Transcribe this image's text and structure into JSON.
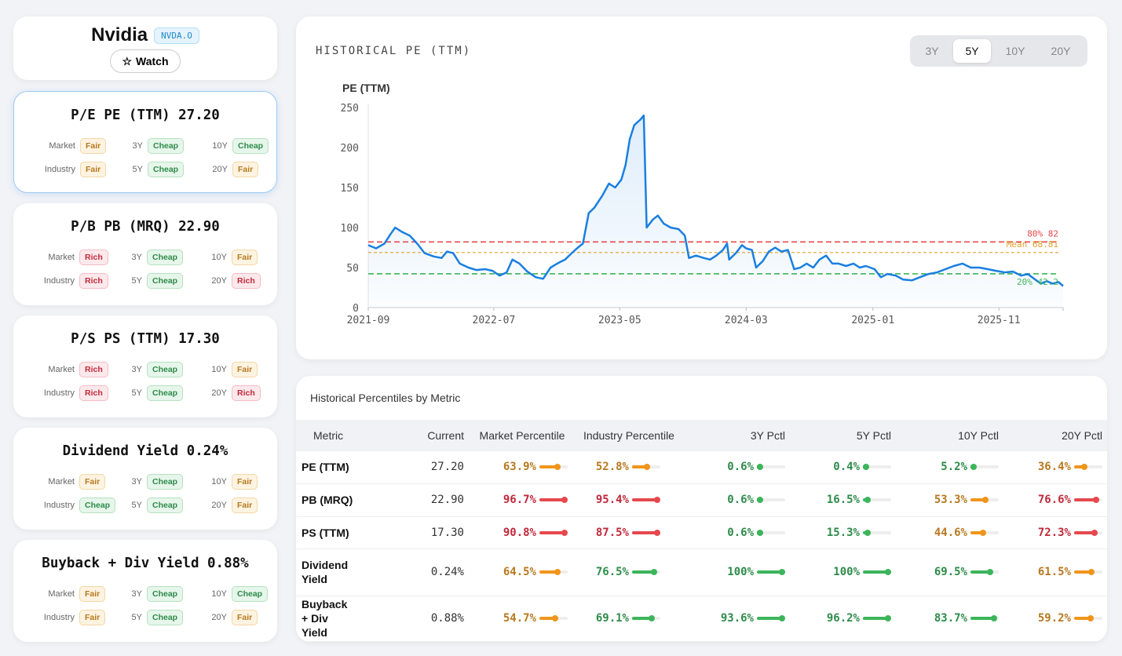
{
  "header": {
    "company": "Nvidia",
    "ticker": "NVDA.O",
    "watch_icon": "☆",
    "watch_label": "Watch"
  },
  "cards": [
    {
      "title": "P/E PE (TTM) 27.20",
      "selected": true,
      "ratings": [
        [
          "Market",
          "Fair"
        ],
        [
          "3Y",
          "Cheap"
        ],
        [
          "10Y",
          "Cheap"
        ],
        [
          "Industry",
          "Fair"
        ],
        [
          "5Y",
          "Cheap"
        ],
        [
          "20Y",
          "Fair"
        ]
      ]
    },
    {
      "title": "P/B PB (MRQ) 22.90",
      "selected": false,
      "ratings": [
        [
          "Market",
          "Rich"
        ],
        [
          "3Y",
          "Cheap"
        ],
        [
          "10Y",
          "Fair"
        ],
        [
          "Industry",
          "Rich"
        ],
        [
          "5Y",
          "Cheap"
        ],
        [
          "20Y",
          "Rich"
        ]
      ]
    },
    {
      "title": "P/S PS (TTM) 17.30",
      "selected": false,
      "ratings": [
        [
          "Market",
          "Rich"
        ],
        [
          "3Y",
          "Cheap"
        ],
        [
          "10Y",
          "Fair"
        ],
        [
          "Industry",
          "Rich"
        ],
        [
          "5Y",
          "Cheap"
        ],
        [
          "20Y",
          "Rich"
        ]
      ]
    },
    {
      "title": "Dividend Yield 0.24%",
      "selected": false,
      "ratings": [
        [
          "Market",
          "Fair"
        ],
        [
          "3Y",
          "Cheap"
        ],
        [
          "10Y",
          "Fair"
        ],
        [
          "Industry",
          "Cheap"
        ],
        [
          "5Y",
          "Cheap"
        ],
        [
          "20Y",
          "Fair"
        ]
      ]
    },
    {
      "title": "Buyback + Div Yield 0.88%",
      "selected": false,
      "ratings": [
        [
          "Market",
          "Fair"
        ],
        [
          "3Y",
          "Cheap"
        ],
        [
          "10Y",
          "Cheap"
        ],
        [
          "Industry",
          "Fair"
        ],
        [
          "5Y",
          "Cheap"
        ],
        [
          "20Y",
          "Fair"
        ]
      ]
    }
  ],
  "chart": {
    "title": "HISTORICAL PE (TTM)",
    "ranges": [
      "3Y",
      "5Y",
      "10Y",
      "20Y"
    ],
    "active_range": "5Y"
  },
  "chart_data": {
    "type": "line",
    "ylabel": "PE (TTM)",
    "ylim": [
      0,
      250
    ],
    "yticks": [
      0,
      50,
      100,
      150,
      200,
      250
    ],
    "xticks": [
      "2021-09",
      "2022-07",
      "2023-05",
      "2024-03",
      "2025-01",
      "2025-11"
    ],
    "x_range": [
      "2021-09",
      "2026-04"
    ],
    "grid": false,
    "bands": [
      {
        "name": "80%",
        "value": 82,
        "label": "80% 82",
        "color": "#e5484d",
        "style": "dashed"
      },
      {
        "name": "Mean",
        "value": 68.81,
        "label": "Mean 68.81",
        "color": "#e0a030",
        "style": "dashed"
      },
      {
        "name": "20%",
        "value": 42.2,
        "label": "20% 42.2",
        "color": "#3cb55a",
        "style": "dashed"
      }
    ],
    "series": [
      {
        "color": "#1a7fe0",
        "points": [
          [
            "2021-09-01",
            78
          ],
          [
            "2021-09-20",
            74
          ],
          [
            "2021-10-10",
            80
          ],
          [
            "2021-10-25",
            92
          ],
          [
            "2021-11-05",
            100
          ],
          [
            "2021-11-20",
            95
          ],
          [
            "2021-12-10",
            90
          ],
          [
            "2021-12-28",
            80
          ],
          [
            "2022-01-15",
            68
          ],
          [
            "2022-02-05",
            64
          ],
          [
            "2022-02-25",
            62
          ],
          [
            "2022-03-10",
            70
          ],
          [
            "2022-03-25",
            68
          ],
          [
            "2022-04-10",
            55
          ],
          [
            "2022-05-01",
            50
          ],
          [
            "2022-05-20",
            47
          ],
          [
            "2022-06-10",
            48
          ],
          [
            "2022-06-28",
            46
          ],
          [
            "2022-07-15",
            40
          ],
          [
            "2022-08-01",
            44
          ],
          [
            "2022-08-15",
            60
          ],
          [
            "2022-09-01",
            55
          ],
          [
            "2022-09-20",
            45
          ],
          [
            "2022-10-10",
            38
          ],
          [
            "2022-10-28",
            36
          ],
          [
            "2022-11-15",
            50
          ],
          [
            "2022-12-01",
            55
          ],
          [
            "2022-12-20",
            60
          ],
          [
            "2023-01-05",
            68
          ],
          [
            "2023-01-20",
            75
          ],
          [
            "2023-02-01",
            80
          ],
          [
            "2023-02-15",
            118
          ],
          [
            "2023-03-01",
            125
          ],
          [
            "2023-03-20",
            140
          ],
          [
            "2023-04-05",
            155
          ],
          [
            "2023-04-20",
            150
          ],
          [
            "2023-05-05",
            160
          ],
          [
            "2023-05-15",
            178
          ],
          [
            "2023-05-25",
            210
          ],
          [
            "2023-06-05",
            228
          ],
          [
            "2023-06-20",
            235
          ],
          [
            "2023-06-28",
            240
          ],
          [
            "2023-07-05",
            100
          ],
          [
            "2023-07-20",
            110
          ],
          [
            "2023-08-01",
            115
          ],
          [
            "2023-08-15",
            105
          ],
          [
            "2023-09-01",
            100
          ],
          [
            "2023-09-20",
            98
          ],
          [
            "2023-10-05",
            90
          ],
          [
            "2023-10-15",
            62
          ],
          [
            "2023-11-01",
            65
          ],
          [
            "2023-11-20",
            62
          ],
          [
            "2023-12-05",
            60
          ],
          [
            "2023-12-20",
            65
          ],
          [
            "2024-01-05",
            72
          ],
          [
            "2024-01-15",
            80
          ],
          [
            "2024-01-20",
            60
          ],
          [
            "2024-02-05",
            68
          ],
          [
            "2024-02-20",
            78
          ],
          [
            "2024-03-01",
            74
          ],
          [
            "2024-03-15",
            72
          ],
          [
            "2024-03-25",
            50
          ],
          [
            "2024-04-10",
            58
          ],
          [
            "2024-04-25",
            70
          ],
          [
            "2024-05-10",
            75
          ],
          [
            "2024-05-25",
            70
          ],
          [
            "2024-06-10",
            72
          ],
          [
            "2024-06-25",
            48
          ],
          [
            "2024-07-10",
            50
          ],
          [
            "2024-07-25",
            55
          ],
          [
            "2024-08-10",
            50
          ],
          [
            "2024-08-25",
            60
          ],
          [
            "2024-09-10",
            65
          ],
          [
            "2024-09-25",
            55
          ],
          [
            "2024-10-10",
            55
          ],
          [
            "2024-10-28",
            52
          ],
          [
            "2024-11-15",
            55
          ],
          [
            "2024-11-30",
            50
          ],
          [
            "2024-12-15",
            52
          ],
          [
            "2025-01-05",
            48
          ],
          [
            "2025-01-20",
            38
          ],
          [
            "2025-02-05",
            42
          ],
          [
            "2025-02-25",
            40
          ],
          [
            "2025-03-15",
            35
          ],
          [
            "2025-04-05",
            34
          ],
          [
            "2025-04-25",
            38
          ],
          [
            "2025-05-15",
            42
          ],
          [
            "2025-06-05",
            44
          ],
          [
            "2025-06-25",
            48
          ],
          [
            "2025-07-15",
            52
          ],
          [
            "2025-08-05",
            55
          ],
          [
            "2025-08-25",
            50
          ],
          [
            "2025-09-15",
            50
          ],
          [
            "2025-10-05",
            48
          ],
          [
            "2025-10-25",
            46
          ],
          [
            "2025-11-15",
            44
          ],
          [
            "2025-12-05",
            45
          ],
          [
            "2025-12-25",
            40
          ],
          [
            "2026-01-10",
            42
          ],
          [
            "2026-01-25",
            36
          ],
          [
            "2026-02-10",
            30
          ],
          [
            "2026-02-25",
            33
          ],
          [
            "2026-03-10",
            30
          ],
          [
            "2026-03-25",
            32
          ],
          [
            "2026-04-05",
            27
          ]
        ]
      }
    ]
  },
  "table": {
    "title": "Historical Percentiles by Metric",
    "headers": [
      "Metric",
      "Current",
      "Market Percentile",
      "Industry Percentile",
      "3Y Pctl",
      "5Y Pctl",
      "10Y Pctl",
      "20Y Pctl"
    ],
    "rows": [
      {
        "metric": "PE (TTM)",
        "current": "27.20",
        "pcts": [
          "63.9%",
          "52.8%",
          "0.6%",
          "0.4%",
          "5.2%",
          "36.4%"
        ],
        "values": [
          63.9,
          52.8,
          0.6,
          0.4,
          5.2,
          36.4
        ]
      },
      {
        "metric": "PB (MRQ)",
        "current": "22.90",
        "pcts": [
          "96.7%",
          "95.4%",
          "0.6%",
          "16.5%",
          "53.3%",
          "76.6%"
        ],
        "values": [
          96.7,
          95.4,
          0.6,
          16.5,
          53.3,
          76.6
        ]
      },
      {
        "metric": "PS (TTM)",
        "current": "17.30",
        "pcts": [
          "90.8%",
          "87.5%",
          "0.6%",
          "15.3%",
          "44.6%",
          "72.3%"
        ],
        "values": [
          90.8,
          87.5,
          0.6,
          15.3,
          44.6,
          72.3
        ]
      },
      {
        "metric": "Dividend Yield",
        "current": "0.24%",
        "pcts": [
          "64.5%",
          "76.5%",
          "100%",
          "100%",
          "69.5%",
          "61.5%"
        ],
        "values": [
          64.5,
          76.5,
          100,
          100,
          69.5,
          61.5
        ],
        "inverse": true
      },
      {
        "metric": "Buyback + Div Yield",
        "current": "0.88%",
        "pcts": [
          "54.7%",
          "69.1%",
          "93.6%",
          "96.2%",
          "83.7%",
          "59.2%"
        ],
        "values": [
          54.7,
          69.1,
          93.6,
          96.2,
          83.7,
          59.2
        ],
        "inverse": true
      }
    ]
  },
  "colors": {
    "green": "#3cb55a",
    "orange": "#f0951a",
    "red": "#e5484d",
    "line": "#1a7fe0"
  }
}
